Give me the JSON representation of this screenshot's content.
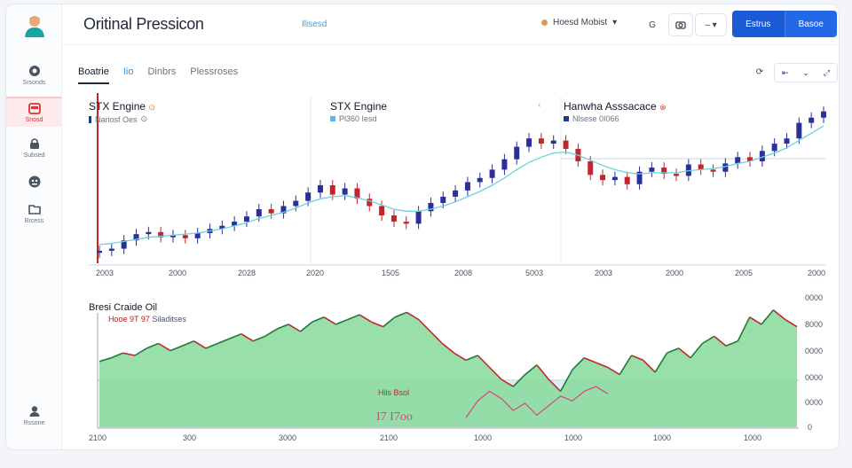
{
  "app": {
    "title": "Oritinal Pressicon",
    "header_link": "Ilisesd"
  },
  "header": {
    "user_label": "Hoesd Mobist",
    "icon_button_1": "G",
    "primary_left": "Estrus",
    "primary_right": "Basoe"
  },
  "sidebar": {
    "items": [
      {
        "label": "Srsonds",
        "icon": "tag-icon"
      },
      {
        "label": "Snosd",
        "icon": "calendar-icon"
      },
      {
        "label": "Subsed",
        "icon": "lock-icon"
      },
      {
        "label": "",
        "icon": "robot-icon"
      },
      {
        "label": "Brcess",
        "icon": "folder-icon"
      },
      {
        "label": "Rssone",
        "icon": "user-icon"
      }
    ]
  },
  "tabs": [
    "Boatrie",
    "Iio",
    "Dinbrs",
    "Plessroses"
  ],
  "panels": [
    {
      "title": "STX Engine",
      "sub": "Nariosf Oes",
      "x_labels": [
        "2003",
        "2000",
        "2028",
        "2020"
      ]
    },
    {
      "title": "STX Engine",
      "sub": "Pl360 Iesd",
      "x_labels": [
        "1505",
        "2008",
        "5003"
      ]
    },
    {
      "title": "Hanwha Asssacace",
      "sub": "Nlsese 0I066",
      "x_labels": [
        "2003",
        "2000",
        "2005",
        "2000"
      ]
    }
  ],
  "lower": {
    "title": "Bresi Craide Oil",
    "sub_red": "Hooe 9T 97",
    "sub_gray": "Siladitses",
    "overlay_small": "Hils Bsol",
    "overlay_big": "I7 I7oo",
    "y_labels": [
      "0000",
      "8000",
      "0000",
      "0000",
      "0000",
      "0"
    ],
    "x_labels": [
      "2100",
      "300",
      "3000",
      "2100",
      "1000",
      "1000",
      "1000",
      "1000"
    ]
  },
  "colors": {
    "up": "#2a2f9a",
    "down": "#c0262b",
    "ma": "#6fd0e0",
    "area": "#6ccf85",
    "accent": "#1a5ad6"
  },
  "chart_data": [
    {
      "type": "line",
      "title": "STX Engine / STX Engine / Hanwha Asssacace",
      "x": [
        0,
        1,
        2,
        3,
        4,
        5,
        6,
        7,
        8,
        9,
        10,
        11,
        12,
        13,
        14,
        15,
        16,
        17,
        18,
        19,
        20,
        21,
        22,
        23,
        24,
        25,
        26,
        27,
        28,
        29,
        30,
        31,
        32,
        33,
        34,
        35,
        36,
        37,
        38,
        39,
        40,
        41,
        42,
        43,
        44,
        45,
        46,
        47,
        48,
        49,
        50,
        51,
        52,
        53,
        54,
        55,
        56,
        57,
        58,
        59
      ],
      "series": [
        {
          "name": "Price",
          "values": [
            12,
            14,
            22,
            28,
            30,
            25,
            27,
            24,
            29,
            33,
            36,
            40,
            45,
            52,
            48,
            55,
            60,
            68,
            75,
            66,
            72,
            62,
            55,
            46,
            40,
            38,
            50,
            58,
            64,
            70,
            78,
            82,
            90,
            100,
            112,
            120,
            115,
            118,
            110,
            98,
            85,
            80,
            83,
            76,
            88,
            92,
            86,
            84,
            95,
            90,
            88,
            96,
            102,
            98,
            108,
            115,
            120,
            135,
            140,
            146
          ]
        },
        {
          "name": "MA",
          "values": [
            18,
            19,
            21,
            23,
            25,
            26,
            27,
            28,
            29,
            31,
            33,
            36,
            39,
            43,
            46,
            49,
            53,
            58,
            62,
            64,
            65,
            63,
            60,
            56,
            52,
            50,
            50,
            52,
            55,
            59,
            64,
            69,
            75,
            82,
            90,
            97,
            102,
            106,
            107,
            104,
            99,
            94,
            90,
            87,
            86,
            87,
            87,
            87,
            89,
            90,
            91,
            93,
            96,
            98,
            102,
            106,
            111,
            118,
            125,
            132
          ]
        }
      ]
    },
    {
      "type": "area",
      "title": "Bresi Craide Oil",
      "x": [
        0,
        1,
        2,
        3,
        4,
        5,
        6,
        7,
        8,
        9,
        10,
        11,
        12,
        13,
        14,
        15,
        16,
        17,
        18,
        19,
        20,
        21,
        22,
        23,
        24,
        25,
        26,
        27,
        28,
        29,
        30,
        31,
        32,
        33,
        34,
        35,
        36,
        37,
        38,
        39,
        40,
        41,
        42,
        43,
        44,
        45,
        46,
        47,
        48,
        49,
        50,
        51,
        52,
        53,
        54,
        55,
        56,
        57,
        58,
        59
      ],
      "series": [
        {
          "name": "Price",
          "values": [
            55,
            58,
            62,
            60,
            66,
            70,
            64,
            68,
            72,
            66,
            70,
            74,
            78,
            72,
            76,
            82,
            86,
            80,
            88,
            92,
            86,
            90,
            94,
            88,
            84,
            92,
            96,
            90,
            80,
            70,
            62,
            56,
            60,
            50,
            40,
            34,
            44,
            52,
            40,
            30,
            48,
            58,
            54,
            50,
            44,
            60,
            56,
            46,
            62,
            66,
            58,
            70,
            76,
            68,
            72,
            92,
            86,
            98,
            90,
            84
          ]
        },
        {
          "name": "Secondary",
          "values": [
            null,
            null,
            null,
            null,
            null,
            null,
            null,
            null,
            null,
            null,
            null,
            null,
            null,
            null,
            null,
            null,
            null,
            null,
            null,
            null,
            null,
            null,
            null,
            null,
            null,
            null,
            null,
            null,
            null,
            null,
            null,
            8,
            22,
            30,
            24,
            14,
            20,
            10,
            18,
            26,
            22,
            30,
            34,
            28,
            null,
            null,
            null,
            null,
            null,
            null,
            null,
            null,
            null,
            null,
            null,
            null,
            null,
            null,
            null,
            null
          ]
        }
      ]
    }
  ]
}
